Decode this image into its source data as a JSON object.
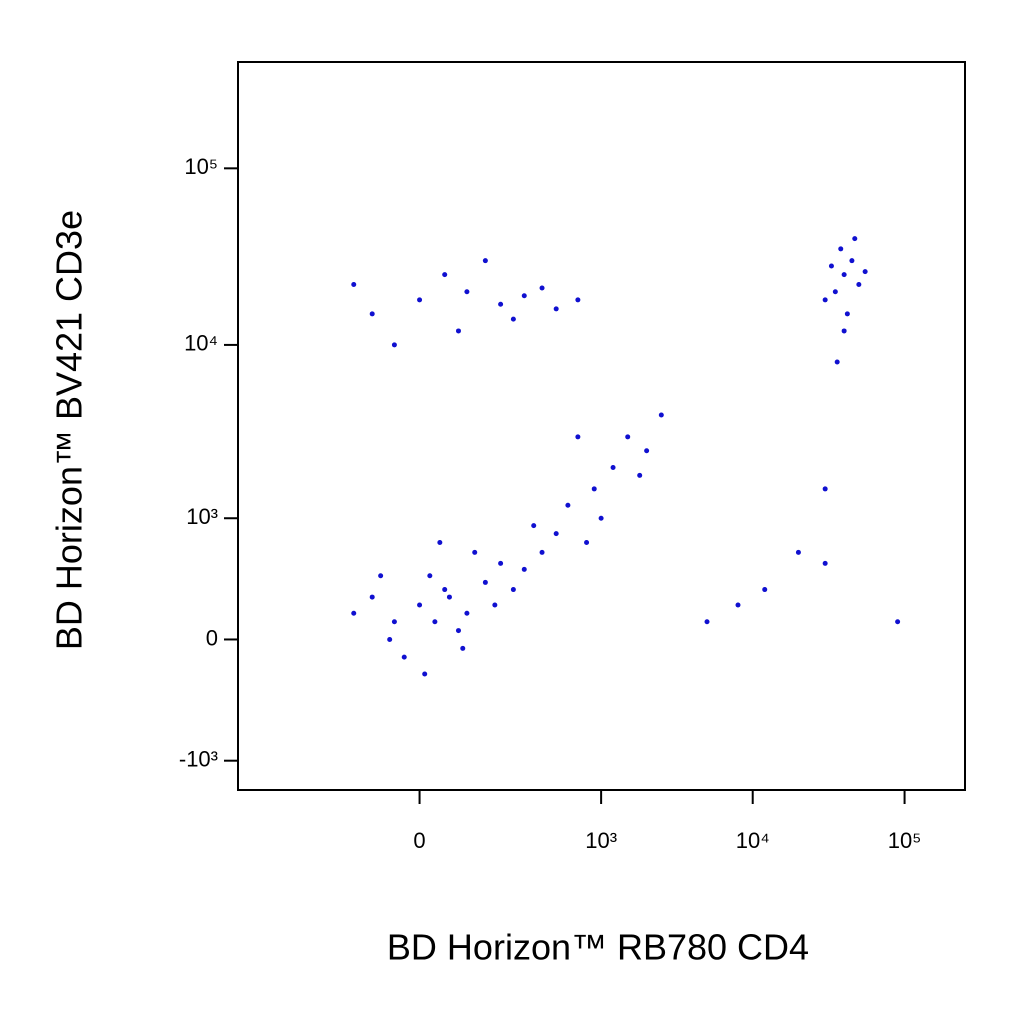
{
  "chart_data": {
    "type": "scatter",
    "x_label": "BD Horizon™ RB780 CD4",
    "y_label": "BD Horizon™ BV421 CD3e",
    "scale": "biexponential",
    "color": "#1010d0",
    "xlim": [
      -1000,
      250000
    ],
    "ylim": [
      -1500,
      400000
    ],
    "xticks": [
      0,
      {
        "value": 1000,
        "label": "10³"
      },
      {
        "value": 10000,
        "label": "10⁴"
      },
      {
        "value": 100000,
        "label": "10⁵"
      }
    ],
    "yticks": [
      {
        "value": -1000,
        "label": "-10³"
      },
      0,
      {
        "value": 1000,
        "label": "10³"
      },
      {
        "value": 10000,
        "label": "10⁴"
      },
      {
        "value": 100000,
        "label": "10⁵"
      }
    ],
    "x": [
      0,
      50,
      -50,
      100,
      20,
      -100,
      150,
      80,
      -30,
      200,
      60,
      -80,
      120,
      300,
      250,
      10,
      -150,
      40,
      180,
      400,
      500,
      350,
      90,
      -60,
      30,
      0,
      100,
      -100,
      200,
      50,
      300,
      -150,
      500,
      80,
      150,
      400,
      700,
      -50,
      250,
      40000,
      35000,
      45000,
      30000,
      50000,
      38000,
      42000,
      33000,
      55000,
      40000,
      36000,
      47000,
      600,
      900,
      1200,
      1500,
      2000,
      800,
      1000,
      2500,
      700,
      1800,
      30000,
      20000,
      30000,
      8000,
      5000,
      90000,
      12000
    ],
    "y": [
      200,
      300,
      100,
      150,
      400,
      250,
      350,
      50,
      -100,
      500,
      250,
      400,
      600,
      450,
      300,
      -200,
      150,
      700,
      200,
      600,
      800,
      900,
      -50,
      0,
      100,
      18000,
      20000,
      15000,
      17000,
      25000,
      19000,
      22000,
      16000,
      12000,
      30000,
      21000,
      18000,
      10000,
      14000,
      25000,
      20000,
      30000,
      18000,
      22000,
      35000,
      15000,
      28000,
      26000,
      12000,
      8000,
      40000,
      1200,
      1500,
      2000,
      3000,
      2500,
      700,
      1000,
      4000,
      3000,
      1800,
      1500,
      600,
      500,
      200,
      100,
      100,
      300
    ]
  }
}
